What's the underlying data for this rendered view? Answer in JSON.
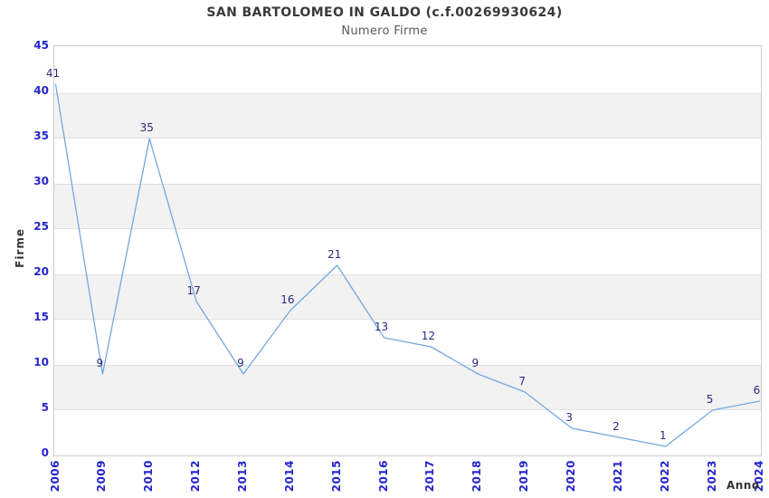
{
  "chart_data": {
    "type": "line",
    "title": "SAN BARTOLOMEO IN GALDO (c.f.00269930624)",
    "subtitle": "Numero Firme",
    "xlabel": "Anno",
    "ylabel": "Firme",
    "x": [
      "2006",
      "2009",
      "2010",
      "2012",
      "2013",
      "2014",
      "2015",
      "2016",
      "2017",
      "2018",
      "2019",
      "2020",
      "2021",
      "2022",
      "2023",
      "2024"
    ],
    "values": [
      41,
      9,
      35,
      17,
      9,
      16,
      21,
      13,
      12,
      9,
      7,
      3,
      2,
      1,
      5,
      6
    ],
    "point_labels": [
      "41",
      "9",
      "35",
      "17",
      "9",
      "16",
      "21",
      "13",
      "12",
      "9",
      "7",
      "3",
      "2",
      "1",
      "5",
      "6"
    ],
    "ylim": [
      0,
      45
    ],
    "ytick_step": 5,
    "yticks": [
      0,
      5,
      10,
      15,
      20,
      25,
      30,
      35,
      40,
      45
    ],
    "grid": "alternating horizontal bands (gray) between 5-10, 15-20, 25-30, 35-40",
    "legend_position": "none",
    "colors": {
      "line": "#72a8e2",
      "tick_label": "#2424cc",
      "point_label": "#2b2b80",
      "band_fill": "#f2f2f2",
      "band_edge": "#e1e1e1",
      "plot_border": "#cccccc",
      "title": "#3a3a3a",
      "subtitle": "#5a5a5a",
      "axis_title": "#333333",
      "background": "#ffffff"
    }
  }
}
